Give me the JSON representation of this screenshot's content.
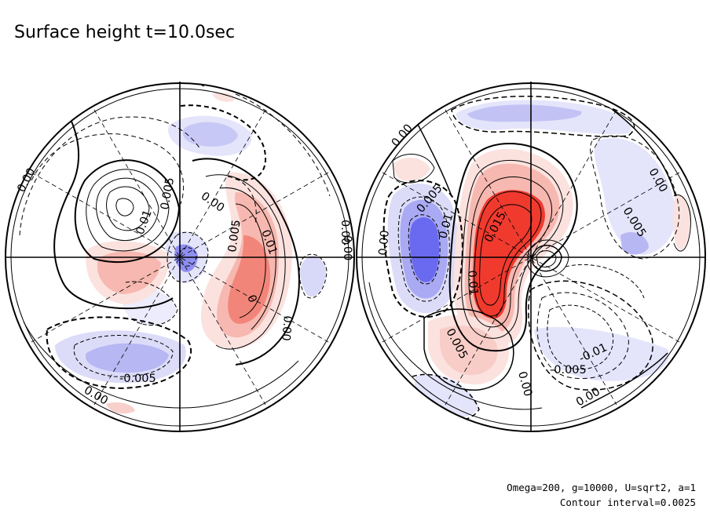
{
  "title": "Surface height t=10.0sec",
  "footer": {
    "params": "Omega=200, g=10000, U=sqrt2, a=1",
    "interval": "Contour interval=0.0025"
  },
  "colors": {
    "positive_strong": "#f03a2e",
    "positive_mid": "#f7a098",
    "positive_light": "#fbe2df",
    "negative_strong": "#5b5bf0",
    "negative_mid": "#a9a9f4",
    "negative_light": "#e4e4fb",
    "line": "#000000"
  },
  "left_hemisphere": {
    "labels": [
      "0.00",
      "0.01",
      "0.005",
      "0.00",
      "0.005",
      "0.01",
      "0",
      "0.00",
      "0.00",
      "-0.005",
      "0.00"
    ]
  },
  "right_hemisphere": {
    "labels": [
      "0.00",
      "0.00",
      "0.005",
      "0.01",
      "0.00",
      "0.015",
      "0.01",
      "0.00",
      "0.005",
      "0.005",
      "-0.01",
      "-0.005",
      "0.00",
      "0.00"
    ]
  }
}
